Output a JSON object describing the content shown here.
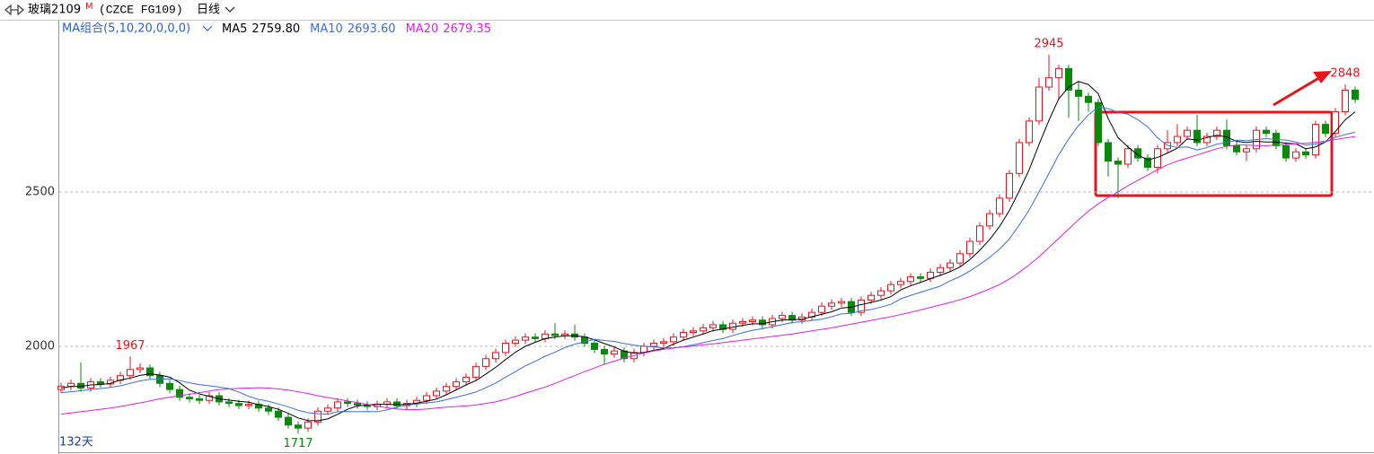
{
  "chart_data": {
    "type": "candlestick",
    "title": "玻璃2109",
    "title_mark": "M",
    "code": "(CZCE FG109)",
    "period": "日线",
    "indicator": "MA组合(5,10,20,0,0,0)",
    "days_label": "132天",
    "ylim": [
      1657,
      3058
    ],
    "yticks": [
      2000,
      2500
    ],
    "grid": true,
    "up_color": "#e8141c",
    "down_color": "#0a8a0a",
    "open": [
      1860,
      1870,
      1880,
      1865,
      1885,
      1878,
      1890,
      1905,
      1925,
      1930,
      1905,
      1880,
      1860,
      1835,
      1830,
      1825,
      1840,
      1820,
      1815,
      1808,
      1812,
      1800,
      1790,
      1770,
      1745,
      1735,
      1755,
      1790,
      1800,
      1820,
      1815,
      1810,
      1805,
      1812,
      1820,
      1808,
      1815,
      1825,
      1840,
      1855,
      1870,
      1885,
      1900,
      1935,
      1960,
      1980,
      2010,
      2020,
      2030,
      2025,
      2040,
      2035,
      2040,
      2030,
      2010,
      1990,
      1975,
      1985,
      1960,
      1980,
      2000,
      2010,
      2015,
      2030,
      2045,
      2050,
      2060,
      2070,
      2055,
      2075,
      2080,
      2085,
      2070,
      2090,
      2100,
      2085,
      2095,
      2110,
      2130,
      2140,
      2145,
      2110,
      2150,
      2165,
      2180,
      2200,
      2210,
      2225,
      2220,
      2240,
      2255,
      2270,
      2300,
      2340,
      2390,
      2430,
      2480,
      2560,
      2660,
      2730,
      2840,
      2870,
      2900,
      2830,
      2810,
      2790,
      2660,
      2600,
      2590,
      2640,
      2610,
      2580,
      2640,
      2660,
      2680,
      2700,
      2660,
      2680,
      2700,
      2650,
      2630,
      2640,
      2700,
      2690,
      2650,
      2610,
      2630,
      2620,
      2719,
      2690,
      2760,
      2830
    ],
    "high": [
      1882,
      1892,
      1948,
      1897,
      1897,
      1902,
      1917,
      1967,
      1945,
      1942,
      1917,
      1892,
      1872,
      1847,
      1842,
      1852,
      1852,
      1832,
      1827,
      1824,
      1824,
      1812,
      1802,
      1782,
      1757,
      1767,
      1802,
      1812,
      1832,
      1832,
      1827,
      1822,
      1824,
      1832,
      1832,
      1827,
      1837,
      1852,
      1867,
      1882,
      1897,
      1912,
      1947,
      1972,
      1992,
      2022,
      2032,
      2042,
      2042,
      2052,
      2075,
      2052,
      2070,
      2042,
      2022,
      2002,
      1997,
      1997,
      1992,
      2012,
      2022,
      2027,
      2042,
      2057,
      2062,
      2072,
      2082,
      2082,
      2087,
      2092,
      2097,
      2097,
      2102,
      2112,
      2112,
      2107,
      2122,
      2142,
      2152,
      2157,
      2157,
      2162,
      2177,
      2192,
      2212,
      2222,
      2237,
      2237,
      2252,
      2267,
      2282,
      2312,
      2352,
      2402,
      2442,
      2492,
      2572,
      2672,
      2742,
      2870,
      2945,
      2912,
      2912,
      2860,
      2822,
      2802,
      2672,
      2612,
      2652,
      2652,
      2622,
      2652,
      2700,
      2720,
      2712,
      2750,
      2692,
      2712,
      2735,
      2662,
      2652,
      2712,
      2712,
      2702,
      2662,
      2642,
      2642,
      2731,
      2731,
      2772,
      2848,
      2842
    ],
    "low": [
      1848,
      1858,
      1853,
      1853,
      1866,
      1866,
      1878,
      1893,
      1913,
      1893,
      1868,
      1848,
      1823,
      1818,
      1813,
      1813,
      1808,
      1803,
      1796,
      1796,
      1788,
      1778,
      1758,
      1733,
      1717,
      1723,
      1743,
      1778,
      1788,
      1803,
      1798,
      1793,
      1793,
      1800,
      1796,
      1796,
      1803,
      1813,
      1828,
      1843,
      1858,
      1873,
      1888,
      1923,
      1948,
      1968,
      1998,
      2008,
      2013,
      2013,
      2023,
      2023,
      2018,
      1998,
      1978,
      1940,
      1963,
      1948,
      1948,
      1968,
      1988,
      1998,
      2003,
      2018,
      2033,
      2038,
      2048,
      2043,
      2043,
      2063,
      2068,
      2058,
      2058,
      2078,
      2073,
      2073,
      2083,
      2098,
      2118,
      2128,
      2098,
      2098,
      2138,
      2153,
      2168,
      2188,
      2198,
      2208,
      2208,
      2228,
      2243,
      2258,
      2288,
      2328,
      2378,
      2418,
      2468,
      2548,
      2648,
      2718,
      2828,
      2800,
      2740,
      2730,
      2760,
      2648,
      2550,
      2480,
      2578,
      2598,
      2568,
      2560,
      2628,
      2648,
      2668,
      2648,
      2648,
      2668,
      2638,
      2618,
      2600,
      2628,
      2678,
      2638,
      2598,
      2598,
      2608,
      2608,
      2678,
      2678,
      2748,
      2788
    ],
    "close": [
      1870,
      1880,
      1865,
      1885,
      1878,
      1890,
      1905,
      1925,
      1930,
      1905,
      1880,
      1860,
      1835,
      1830,
      1825,
      1840,
      1820,
      1815,
      1808,
      1812,
      1800,
      1790,
      1770,
      1745,
      1735,
      1755,
      1790,
      1800,
      1820,
      1815,
      1810,
      1805,
      1812,
      1820,
      1808,
      1815,
      1825,
      1840,
      1855,
      1870,
      1885,
      1900,
      1935,
      1960,
      1980,
      2010,
      2020,
      2030,
      2025,
      2040,
      2035,
      2040,
      2030,
      2010,
      1990,
      1975,
      1985,
      1960,
      1980,
      2000,
      2010,
      2015,
      2030,
      2045,
      2050,
      2060,
      2070,
      2055,
      2075,
      2080,
      2085,
      2070,
      2090,
      2100,
      2085,
      2095,
      2110,
      2130,
      2140,
      2145,
      2110,
      2150,
      2165,
      2180,
      2200,
      2210,
      2225,
      2220,
      2240,
      2255,
      2270,
      2300,
      2340,
      2390,
      2430,
      2480,
      2560,
      2660,
      2730,
      2840,
      2870,
      2900,
      2830,
      2810,
      2790,
      2660,
      2600,
      2590,
      2640,
      2610,
      2580,
      2640,
      2660,
      2680,
      2700,
      2660,
      2680,
      2700,
      2650,
      2630,
      2640,
      2700,
      2690,
      2650,
      2610,
      2630,
      2620,
      2719,
      2690,
      2760,
      2830,
      2800
    ],
    "high_labels": [
      1967,
      2945,
      2848
    ],
    "low_labels": [
      1717
    ],
    "series": [
      {
        "name": "MA5",
        "color": "#000000",
        "last_label": "2759.80",
        "values": [
          1865,
          1870,
          1870,
          1875,
          1876,
          1880,
          1891,
          1897,
          1906,
          1911,
          1907,
          1900,
          1882,
          1858,
          1846,
          1838,
          1830,
          1826,
          1822,
          1819,
          1811,
          1805,
          1796,
          1783,
          1768,
          1759,
          1759,
          1765,
          1780,
          1796,
          1807,
          1810,
          1812,
          1812,
          1811,
          1812,
          1816,
          1822,
          1829,
          1843,
          1859,
          1875,
          1889,
          1910,
          1932,
          1957,
          1981,
          2000,
          2013,
          2025,
          2030,
          2034,
          2034,
          2031,
          2021,
          2009,
          1998,
          1984,
          1978,
          1980,
          1987,
          1993,
          2007,
          2020,
          2030,
          2040,
          2051,
          2056,
          2062,
          2068,
          2073,
          2073,
          2080,
          2085,
          2086,
          2088,
          2096,
          2104,
          2112,
          2124,
          2127,
          2135,
          2142,
          2150,
          2161,
          2183,
          2196,
          2207,
          2219,
          2230,
          2242,
          2257,
          2281,
          2311,
          2346,
          2388,
          2440,
          2504,
          2572,
          2654,
          2732,
          2802,
          2840,
          2858,
          2848,
          2818,
          2738,
          2676,
          2646,
          2620,
          2604,
          2612,
          2626,
          2642,
          2672,
          2668,
          2676,
          2684,
          2678,
          2664,
          2660,
          2664,
          2662,
          2662,
          2658,
          2656,
          2640,
          2646,
          2662,
          2696,
          2734,
          2759.8
        ]
      },
      {
        "name": "MA10",
        "color": "#3b6fd6",
        "last_label": "2693.60",
        "values": [
          1850,
          1853,
          1856,
          1860,
          1863,
          1867,
          1872,
          1880,
          1888,
          1893,
          1893,
          1895,
          1889,
          1882,
          1876,
          1872,
          1868,
          1863,
          1852,
          1838,
          1828,
          1822,
          1813,
          1804,
          1793,
          1785,
          1782,
          1780,
          1788,
          1789,
          1788,
          1789,
          1788,
          1794,
          1803,
          1810,
          1813,
          1817,
          1820,
          1827,
          1835,
          1843,
          1852,
          1866,
          1881,
          1900,
          1918,
          1937,
          1951,
          1968,
          1981,
          1996,
          2007,
          2015,
          2023,
          2019,
          2016,
          2009,
          2004,
          2000,
          1998,
          1995,
          1995,
          1999,
          2005,
          2012,
          2019,
          2025,
          2035,
          2044,
          2052,
          2057,
          2064,
          2070,
          2077,
          2080,
          2084,
          2088,
          2096,
          2105,
          2107,
          2115,
          2119,
          2127,
          2136,
          2154,
          2165,
          2175,
          2185,
          2195,
          2212,
          2226,
          2244,
          2265,
          2288,
          2315,
          2348,
          2393,
          2442,
          2500,
          2560,
          2621,
          2672,
          2715,
          2750,
          2775,
          2770,
          2758,
          2752,
          2734,
          2711,
          2675,
          2651,
          2644,
          2646,
          2636,
          2644,
          2655,
          2660,
          2668,
          2666,
          2670,
          2673,
          2670,
          2668,
          2662,
          2652,
          2655,
          2662,
          2677,
          2686,
          2693.6
        ]
      },
      {
        "name": "MA20",
        "color": "#e020e0",
        "last_label": "2679.35",
        "values": [
          1780,
          1784,
          1788,
          1792,
          1796,
          1800,
          1805,
          1811,
          1817,
          1823,
          1830,
          1835,
          1840,
          1845,
          1850,
          1855,
          1860,
          1862,
          1864,
          1865,
          1866,
          1865,
          1862,
          1858,
          1853,
          1847,
          1840,
          1834,
          1829,
          1823,
          1818,
          1812,
          1806,
          1801,
          1797,
          1795,
          1795,
          1797,
          1800,
          1803,
          1805,
          1807,
          1810,
          1815,
          1820,
          1828,
          1838,
          1848,
          1858,
          1868,
          1880,
          1893,
          1905,
          1918,
          1930,
          1942,
          1952,
          1962,
          1970,
          1978,
          1985,
          1990,
          1994,
          1998,
          2001,
          2005,
          2008,
          2012,
          2016,
          2020,
          2024,
          2028,
          2032,
          2036,
          2040,
          2045,
          2050,
          2055,
          2060,
          2066,
          2072,
          2078,
          2084,
          2090,
          2096,
          2103,
          2110,
          2118,
          2126,
          2134,
          2142,
          2151,
          2161,
          2173,
          2186,
          2200,
          2218,
          2240,
          2264,
          2290,
          2320,
          2350,
          2380,
          2410,
          2438,
          2462,
          2482,
          2500,
          2520,
          2538,
          2555,
          2572,
          2588,
          2600,
          2610,
          2620,
          2630,
          2640,
          2648,
          2652,
          2652,
          2650,
          2650,
          2652,
          2654,
          2656,
          2658,
          2661,
          2665,
          2670,
          2675,
          2679.35
        ]
      }
    ]
  }
}
